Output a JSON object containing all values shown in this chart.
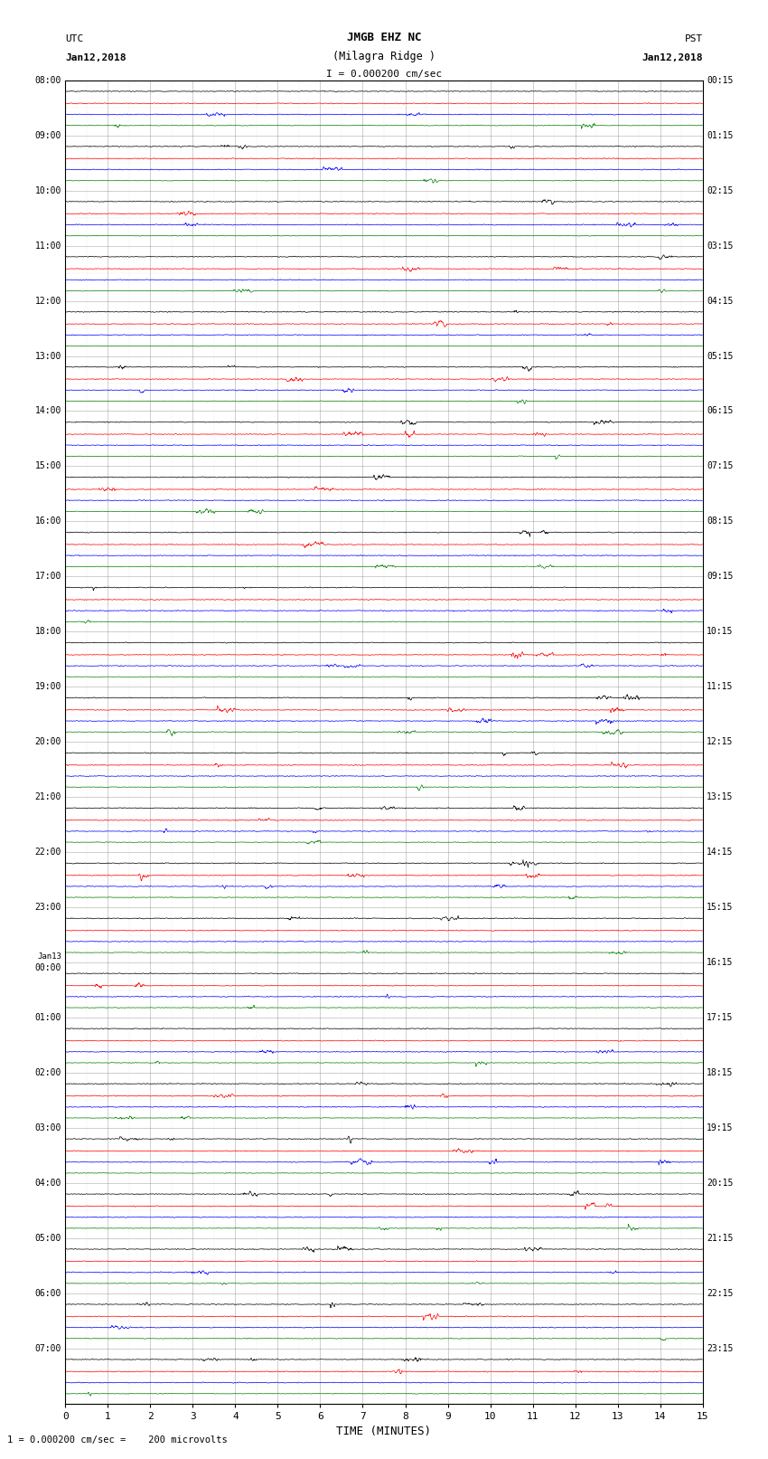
{
  "title_line1": "JMGB EHZ NC",
  "title_line2": "(Milagra Ridge )",
  "scale_label": "I = 0.000200 cm/sec",
  "left_label": "UTC",
  "left_date": "Jan12,2018",
  "right_label": "PST",
  "right_date": "Jan12,2018",
  "bottom_label": "TIME (MINUTES)",
  "bottom_note": "1 = 0.000200 cm/sec =    200 microvolts",
  "utc_times": [
    "08:00",
    "09:00",
    "10:00",
    "11:00",
    "12:00",
    "13:00",
    "14:00",
    "15:00",
    "16:00",
    "17:00",
    "18:00",
    "19:00",
    "20:00",
    "21:00",
    "22:00",
    "23:00",
    "Jan13\n00:00",
    "01:00",
    "02:00",
    "03:00",
    "04:00",
    "05:00",
    "06:00",
    "07:00"
  ],
  "pst_times": [
    "00:15",
    "01:15",
    "02:15",
    "03:15",
    "04:15",
    "05:15",
    "06:15",
    "07:15",
    "08:15",
    "09:15",
    "10:15",
    "11:15",
    "12:15",
    "13:15",
    "14:15",
    "15:15",
    "16:15",
    "17:15",
    "18:15",
    "19:15",
    "20:15",
    "21:15",
    "22:15",
    "23:15"
  ],
  "n_hours": 24,
  "traces_per_hour": 4,
  "x_min": 0,
  "x_max": 15,
  "x_ticks": [
    0,
    1,
    2,
    3,
    4,
    5,
    6,
    7,
    8,
    9,
    10,
    11,
    12,
    13,
    14,
    15
  ],
  "background_color": "#ffffff",
  "grid_color": "#999999",
  "trace_colors": [
    "#000000",
    "#ff0000",
    "#0000ff",
    "#008000"
  ],
  "figsize": [
    8.5,
    16.13
  ],
  "dpi": 100
}
